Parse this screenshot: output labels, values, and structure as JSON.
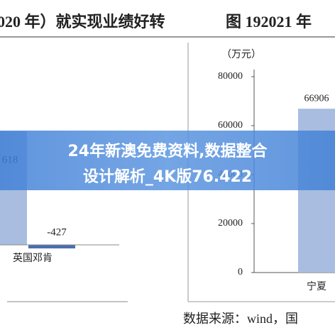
{
  "header": {
    "left_title": "020 年）就实现业绩好转",
    "right_title": "图 192021 年"
  },
  "left_chart": {
    "bar_label": "618",
    "negative_label": "-427",
    "category": "英国邓肯"
  },
  "banner": {
    "line1": "24年新澳免费资料,数据整合",
    "line2": "设计解析_4K版76.422"
  },
  "source": "数据来源：wind，国",
  "chart_data": {
    "type": "bar",
    "y_label": "（万元）",
    "categories": [
      "宁夏"
    ],
    "values": [
      66906
    ],
    "color": "#a8bde0",
    "ylim": [
      0,
      80000
    ],
    "yticks": [
      0,
      20000,
      40000,
      60000,
      80000
    ],
    "grid": false
  }
}
